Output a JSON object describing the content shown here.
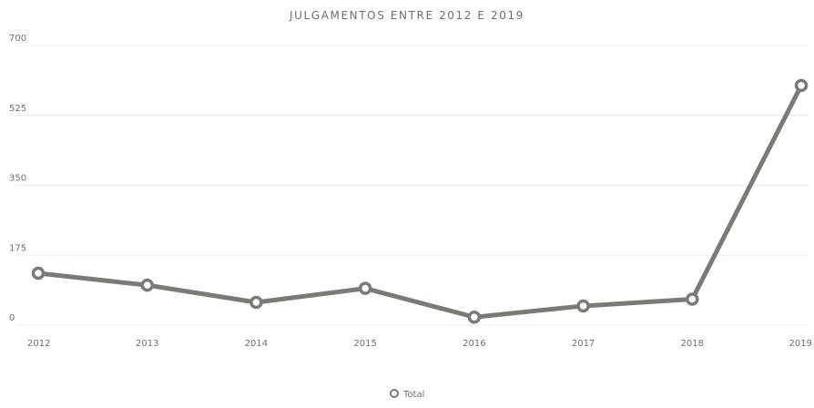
{
  "chart_data": {
    "type": "line",
    "title": "JULGAMENTOS ENTRE 2012 E 2019",
    "xlabel": "",
    "ylabel": "",
    "categories": [
      "2012",
      "2013",
      "2014",
      "2015",
      "2016",
      "2017",
      "2018",
      "2019"
    ],
    "series": [
      {
        "name": "Total",
        "values": [
          130,
          100,
          57,
          92,
          20,
          48,
          65,
          600
        ],
        "color": "#7b7b76"
      }
    ],
    "ylim": [
      0,
      700
    ],
    "yticks": [
      0,
      175,
      350,
      525,
      700
    ],
    "grid": true,
    "legend": "bottom-center",
    "colors": {
      "line": "#7b7b76",
      "marker_fill": "#ffffff",
      "grid": "#ececec",
      "text": "#6f6f6f"
    }
  }
}
